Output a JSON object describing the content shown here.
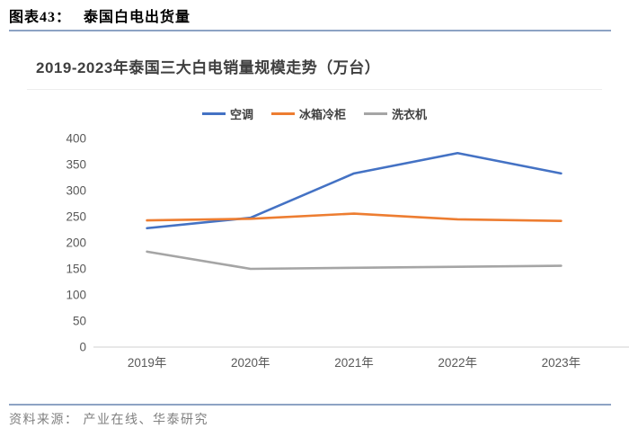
{
  "header": {
    "figure_label": "图表43：",
    "figure_title": "泰国白电出货量"
  },
  "card": {
    "title": "2019-2023年泰国三大白电销量规模走势（万台）"
  },
  "footer": {
    "source": "资料来源： 产业在线、华泰研究"
  },
  "colors": {
    "rule_accent": "#8da3c4",
    "axis_line": "#d9d9d9",
    "tick_text": "#595959"
  },
  "chart_data": {
    "type": "line",
    "title": "2019-2023年泰国三大白电销量规模走势（万台）",
    "categories": [
      "2019年",
      "2020年",
      "2021年",
      "2022年",
      "2023年"
    ],
    "series": [
      {
        "name": "空调",
        "color": "#4472C4",
        "values": [
          228,
          248,
          333,
          372,
          333
        ]
      },
      {
        "name": "冰箱冷柜",
        "color": "#ED7D31",
        "values": [
          243,
          246,
          256,
          245,
          242
        ]
      },
      {
        "name": "洗衣机",
        "color": "#A5A5A5",
        "values": [
          183,
          150,
          152,
          154,
          156
        ]
      }
    ],
    "xlabel": "",
    "ylabel": "",
    "ylim": [
      0,
      400
    ],
    "ytick_step": 50,
    "grid": false,
    "legend_position": "top"
  }
}
